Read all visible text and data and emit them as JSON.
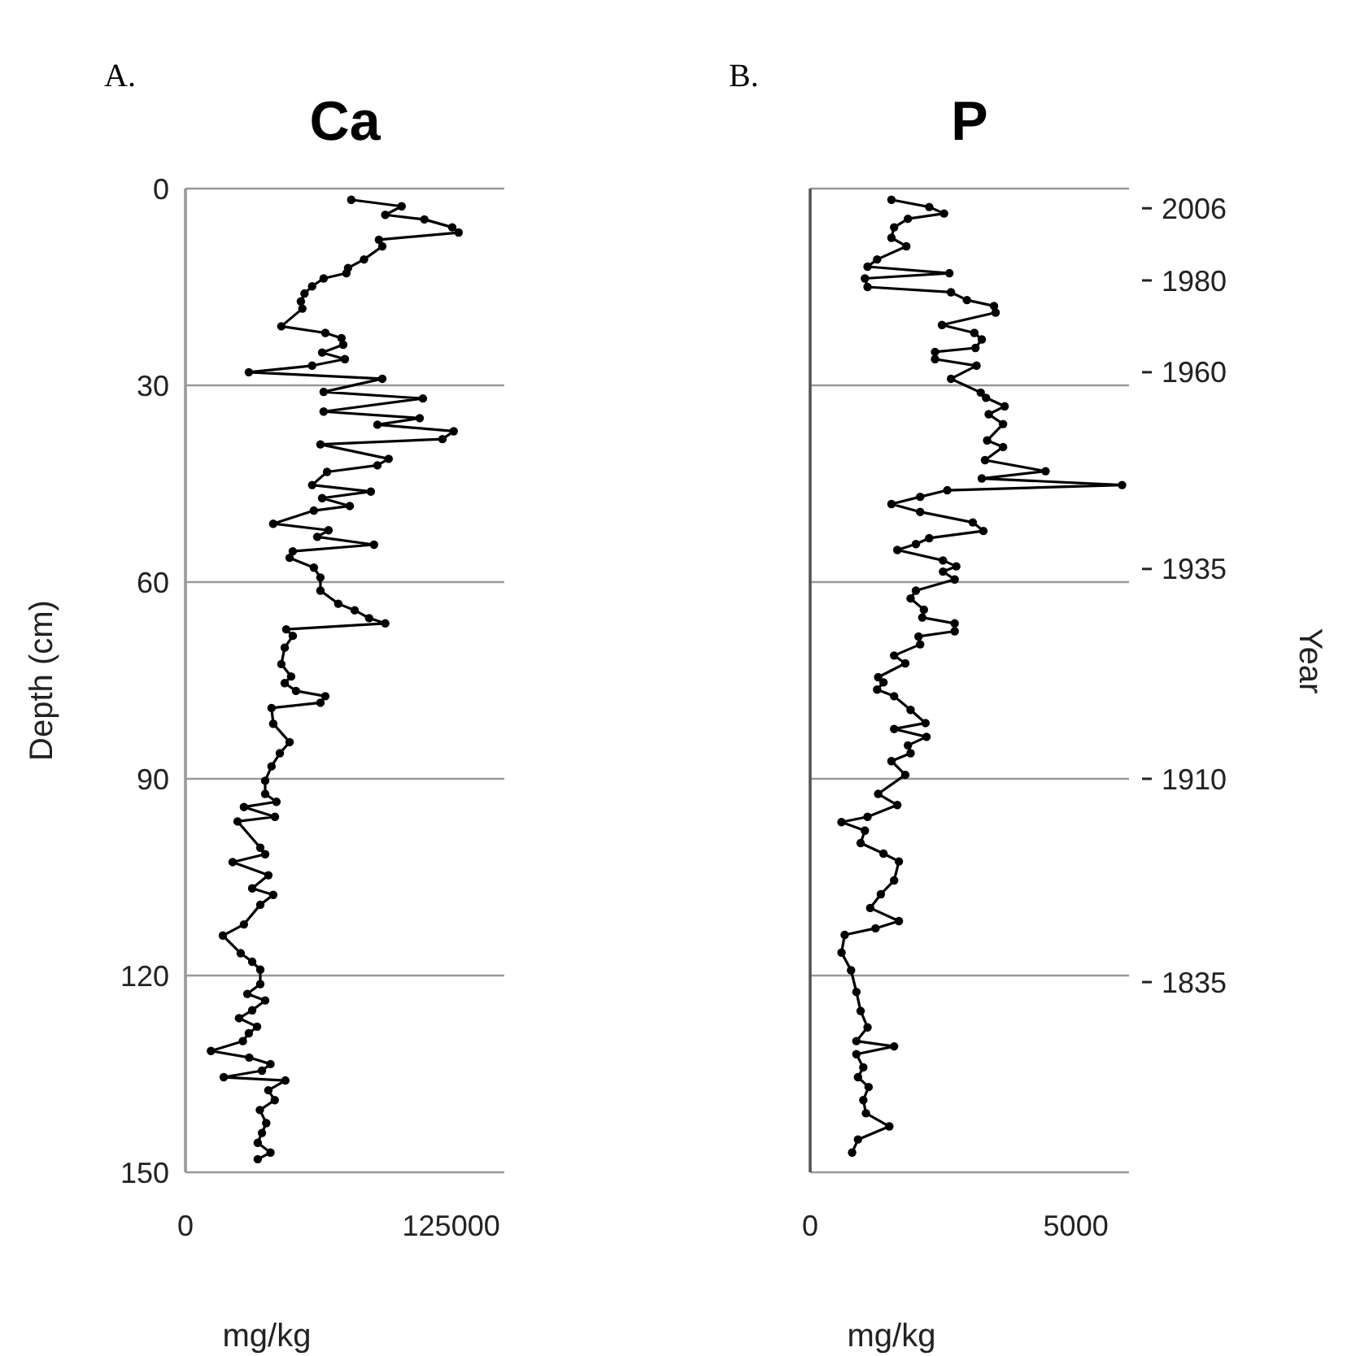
{
  "chart_data": [
    {
      "type": "line",
      "title": "Ca",
      "xlabel": "mg/kg",
      "ylabel": "Depth (cm)",
      "annotations": [
        "A."
      ],
      "xlim": [
        0,
        150000
      ],
      "xticks": [
        0,
        125000
      ],
      "ylim": [
        150,
        0
      ],
      "yticks": [
        0,
        30,
        60,
        90,
        120,
        150
      ],
      "grid": "y",
      "marker": "circle",
      "line_style": "solid",
      "series": [
        {
          "color": "#000000",
          "x": [
            78000,
            101700,
            94000,
            112400,
            125500,
            128500,
            91000,
            92600,
            84000,
            76500,
            75700,
            65000,
            59600,
            56000,
            54300,
            55000,
            45100,
            65800,
            73400,
            74200,
            64300,
            75000,
            59600,
            29800,
            92600,
            65000,
            111700,
            65000,
            110200,
            90300,
            126200,
            120900,
            63500,
            95600,
            90300,
            66600,
            59600,
            87200,
            64300,
            77300,
            60400,
            41300,
            67300,
            62000,
            88700,
            50500,
            49000,
            60400,
            63500,
            63500,
            71900,
            79600,
            86400,
            94000,
            47400,
            50500,
            46700,
            45100,
            49700,
            46700,
            52000,
            65800,
            63500,
            40500,
            41300,
            49000,
            44400,
            40500,
            37500,
            37500,
            42800,
            27500,
            42100,
            24500,
            35200,
            37500,
            22200,
            39000,
            31400,
            41300,
            35200,
            27500,
            17600,
            26000,
            31400,
            35200,
            35200,
            29100,
            37500,
            31400,
            25200,
            33700,
            29800,
            27000,
            12000,
            30000,
            40000,
            36000,
            18000,
            47000,
            39000,
            42000,
            35000,
            38000,
            36000,
            34000,
            40000,
            34000
          ],
          "values": [
            1.7,
            2.7,
            4,
            4.7,
            5.9,
            6.7,
            7.8,
            8.8,
            10.8,
            12.1,
            12.9,
            13.7,
            14.9,
            16,
            17.2,
            18.3,
            21,
            22,
            22.8,
            23.8,
            25,
            26,
            27,
            28,
            29,
            31,
            32,
            34,
            35,
            36,
            37,
            38.2,
            39,
            41.2,
            42.2,
            43.2,
            45.2,
            46.2,
            47.2,
            48.4,
            49.1,
            51.1,
            52.1,
            53.1,
            54.3,
            55.3,
            56.3,
            57.8,
            59.3,
            61.3,
            63.3,
            64.3,
            65.5,
            66.3,
            67.2,
            68.2,
            70,
            72.5,
            74.4,
            75.4,
            76.6,
            77.4,
            78.4,
            79.2,
            81.6,
            84.4,
            86.1,
            88.1,
            90.3,
            92.3,
            93.5,
            94.3,
            95.8,
            96.5,
            100.5,
            101.5,
            102.7,
            104.7,
            106.7,
            107.7,
            109.2,
            112.2,
            113.9,
            116.6,
            117.9,
            119.1,
            121.3,
            122.8,
            123.8,
            125.3,
            126.5,
            127.8,
            128.8,
            130,
            131.5,
            132.5,
            133.5,
            134.5,
            135.5,
            136,
            137.5,
            139,
            140.5,
            142.5,
            144,
            145.5,
            147,
            148
          ]
        }
      ]
    },
    {
      "type": "line",
      "title": "P",
      "xlabel": "mg/kg",
      "y2label": "Year",
      "annotations": [
        "B."
      ],
      "y2_categories": [
        null,
        null,
        null,
        "2006",
        null,
        null,
        null,
        null,
        null,
        null,
        null,
        null,
        null,
        null,
        "1980",
        null,
        null,
        null,
        null,
        null,
        null,
        null,
        null,
        null,
        null,
        null,
        null,
        null,
        "1960",
        null,
        null,
        null,
        null,
        null,
        null,
        null,
        null,
        null,
        null,
        null,
        null,
        null,
        null,
        null,
        null,
        null,
        null,
        null,
        null,
        null,
        null,
        null,
        null,
        null,
        null,
        null,
        null,
        null,
        "1935",
        null,
        null,
        null,
        null,
        null,
        null,
        null,
        null,
        null,
        null,
        null,
        null,
        null,
        null,
        null,
        null,
        null,
        null,
        null,
        null,
        null,
        null,
        null,
        null,
        null,
        null,
        null,
        null,
        null,
        null,
        null,
        "1910",
        null,
        null,
        null,
        null,
        null,
        null,
        null,
        null,
        null,
        null,
        null,
        null,
        null,
        null,
        null,
        null,
        null,
        null,
        null,
        null,
        null,
        null,
        null,
        null,
        null,
        null,
        null,
        null,
        null,
        null,
        "1835",
        null,
        null,
        null,
        null,
        null,
        null,
        null,
        null,
        null,
        null,
        null,
        null,
        null,
        null,
        null,
        null,
        null,
        null,
        null,
        null,
        null,
        null,
        null,
        null,
        null,
        null,
        null,
        null,
        null
      ],
      "xlim": [
        0,
        6000
      ],
      "xticks": [
        0,
        5000
      ],
      "ylim": [
        150,
        0
      ],
      "yticks": [
        0,
        30,
        60,
        90,
        120,
        150
      ],
      "tick_labels": "x",
      "grid": "y",
      "marker": "circle",
      "line_style": "solid",
      "series": [
        {
          "color": "#000000",
          "x": [
            1530,
            2240,
            2520,
            1840,
            1580,
            1530,
            1810,
            1260,
            1080,
            2620,
            1030,
            1080,
            2650,
            2950,
            3460,
            3490,
            2480,
            3090,
            3230,
            3110,
            2350,
            2350,
            3130,
            2650,
            3210,
            3310,
            3660,
            3360,
            3630,
            3330,
            3630,
            3290,
            4430,
            3230,
            5870,
            2580,
            2070,
            1530,
            2070,
            3060,
            3260,
            2240,
            1990,
            1640,
            2500,
            2750,
            2500,
            2720,
            1990,
            1890,
            2140,
            2110,
            2720,
            2720,
            2040,
            2070,
            1580,
            1790,
            1280,
            1380,
            1260,
            1580,
            1890,
            2170,
            1580,
            2190,
            1840,
            1890,
            1530,
            1790,
            1280,
            1640,
            1080,
            590,
            1030,
            950,
            1380,
            1670,
            1580,
            1330,
            1130,
            1670,
            1230,
            650,
            590,
            770,
            870,
            950,
            1080,
            870,
            1580,
            870,
            1000,
            900,
            1100,
            1000,
            1050,
            1490,
            900,
            790
          ],
          "values": [
            1.7,
            2.8,
            3.8,
            4.6,
            5.9,
            7.5,
            8.8,
            10.8,
            11.9,
            12.9,
            13.7,
            15,
            15.8,
            17,
            17.9,
            18.9,
            20.8,
            22,
            23,
            24.3,
            24.9,
            26,
            27,
            29,
            31.1,
            31.9,
            33.2,
            34.4,
            35.9,
            38.4,
            39.4,
            41.4,
            43.1,
            44.2,
            45.2,
            46,
            47,
            48.1,
            49.3,
            50.9,
            52.2,
            53.3,
            54.2,
            55.1,
            56.7,
            57.6,
            58.4,
            59.6,
            61.3,
            62.5,
            64.2,
            65.4,
            66.3,
            67.5,
            68.3,
            69.5,
            71.2,
            72.4,
            74.5,
            75.3,
            76.4,
            77.4,
            79.5,
            81.5,
            82.4,
            83.6,
            84.9,
            86.1,
            87.3,
            89.4,
            92.3,
            94,
            95.8,
            96.6,
            97.9,
            99.8,
            101.4,
            102.6,
            105.5,
            107.6,
            109.7,
            111.7,
            112.8,
            113.8,
            116.5,
            119.2,
            122.5,
            125.4,
            127.9,
            130,
            130.8,
            132,
            134,
            135.5,
            137,
            139,
            141,
            143,
            145,
            147
          ]
        }
      ]
    }
  ]
}
